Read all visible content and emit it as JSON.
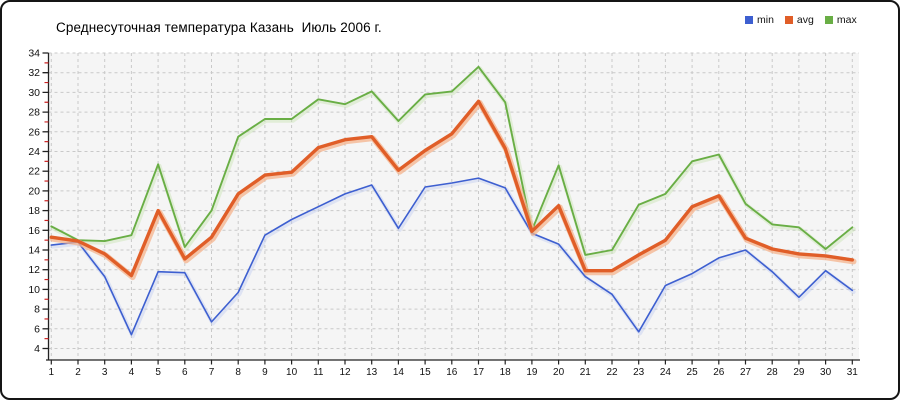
{
  "title": "Среднесуточная температура Казань  Июль 2006 г.",
  "widget": {
    "background": "#ffffff",
    "border_color": "#151515"
  },
  "legend": {
    "position": "top-right",
    "items": [
      {
        "label": "min",
        "color": "#3d5fd0"
      },
      {
        "label": "avg",
        "color": "#e05e28"
      },
      {
        "label": "max",
        "color": "#69ae45"
      }
    ]
  },
  "chart_data": {
    "type": "line",
    "title": "Среднесуточная температура Казань  Июль 2006 г.",
    "xlabel": "",
    "ylabel": "",
    "categories": [
      1,
      2,
      3,
      4,
      5,
      6,
      7,
      8,
      9,
      10,
      11,
      12,
      13,
      14,
      15,
      16,
      17,
      18,
      19,
      20,
      21,
      22,
      23,
      24,
      25,
      26,
      27,
      28,
      29,
      30,
      31
    ],
    "series": [
      {
        "name": "min",
        "color": "#3d5fd0",
        "halo": "#bcc9f0",
        "width": 1.6,
        "values": [
          14.5,
          14.8,
          11.3,
          5.4,
          11.8,
          11.7,
          6.7,
          9.7,
          15.5,
          17.1,
          18.4,
          19.7,
          20.6,
          16.2,
          20.4,
          20.8,
          21.3,
          20.3,
          15.7,
          14.6,
          11.3,
          9.5,
          5.7,
          10.4,
          11.6,
          13.2,
          14.0,
          11.8,
          9.2,
          11.9,
          9.9
        ]
      },
      {
        "name": "avg",
        "color": "#e05e28",
        "halo": "#f4b38c",
        "width": 3.4,
        "values": [
          15.3,
          14.9,
          13.6,
          11.4,
          18.0,
          13.1,
          15.3,
          19.7,
          21.6,
          21.9,
          24.4,
          25.2,
          25.5,
          22.1,
          24.1,
          25.8,
          29.1,
          24.3,
          15.9,
          18.5,
          11.9,
          11.9,
          13.5,
          15.0,
          18.4,
          19.5,
          15.2,
          14.1,
          13.6,
          13.4,
          13.0
        ]
      },
      {
        "name": "max",
        "color": "#69ae45",
        "halo": "#c3e0ab",
        "width": 1.9,
        "values": [
          16.4,
          15.0,
          14.9,
          15.5,
          22.7,
          14.3,
          18.0,
          25.5,
          27.3,
          27.3,
          29.3,
          28.8,
          30.1,
          27.1,
          29.8,
          30.1,
          32.6,
          29.0,
          16.0,
          22.6,
          13.5,
          14.0,
          18.6,
          19.7,
          23.0,
          23.7,
          18.7,
          16.6,
          16.3,
          14.1,
          16.3
        ]
      }
    ],
    "y_axis": {
      "min": 4,
      "max": 34,
      "tick_step": 2,
      "minor_tick_step": 1,
      "tick_color": "#222222",
      "minor_tick_color": "#cc2222",
      "label_color": "#111111"
    },
    "x_axis": {
      "ticks": [
        1,
        2,
        3,
        4,
        5,
        6,
        7,
        8,
        9,
        10,
        11,
        12,
        13,
        14,
        15,
        16,
        17,
        18,
        19,
        20,
        21,
        22,
        23,
        24,
        25,
        26,
        27,
        28,
        29,
        30,
        31
      ],
      "label_color": "#111111"
    },
    "ylim": [
      2.85,
      34
    ],
    "grid": {
      "show": true,
      "color": "#c9c9c9",
      "dash": "3,3",
      "plot_background": "#f5f5f5"
    },
    "legend_position": "top-right"
  }
}
